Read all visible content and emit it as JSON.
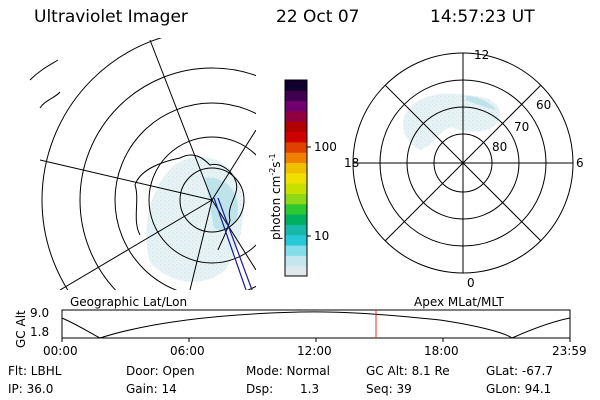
{
  "header": {
    "instrument": "Ultraviolet Imager",
    "date": "22 Oct 07",
    "time": "14:57:23 UT"
  },
  "left_panel": {
    "label": "Geographic Lat/Lon"
  },
  "right_panel": {
    "label": "Apex MLat/MLT",
    "mlt_labels": {
      "top": "12",
      "bottom": "0",
      "left": "18",
      "right": "6"
    },
    "lat_labels": [
      "60",
      "70",
      "80"
    ]
  },
  "colorbar": {
    "unit_label": "photon cm",
    "unit_exp1": "-2",
    "unit_mid": "s",
    "unit_exp2": "-1",
    "ticks": [
      "100",
      "10"
    ],
    "colors": [
      "#dfe9ec",
      "#c4e6ee",
      "#84dde9",
      "#28c8d8",
      "#17b8a8",
      "#00b060",
      "#2ec830",
      "#8ed818",
      "#c8e000",
      "#f0e000",
      "#f0c000",
      "#f08000",
      "#e04000",
      "#d00000",
      "#b00000",
      "#900040",
      "#700070",
      "#400050",
      "#100030"
    ]
  },
  "altitude_plot": {
    "ylabel": "GC Alt",
    "ymax": "9.0",
    "ymin": "1.8",
    "xticks": [
      "00:00",
      "06:00",
      "12:00",
      "18:00",
      "23:59"
    ],
    "current_time_marker": "14:57"
  },
  "status": {
    "flt": "Flt: LBHL",
    "ip": "IP: 36.0",
    "door": "Door: Open",
    "gain": "Gain: 14",
    "mode": "Mode: Normal",
    "dsp_label": "Dsp:",
    "dsp_value": "1.3",
    "gc_alt": "GC Alt: 8.1 Re",
    "seq": "Seq: 39",
    "glat": "GLat: -67.7",
    "glon": "GLon: 94.1"
  }
}
